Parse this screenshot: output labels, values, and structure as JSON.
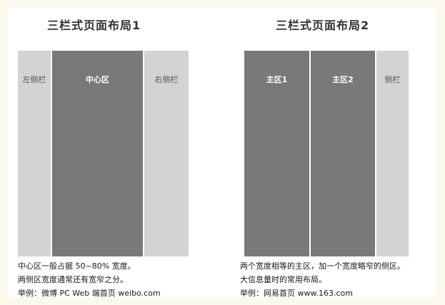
{
  "layout1": {
    "title": "三栏式页面布局1",
    "columns": {
      "left": "左侧栏",
      "center": "中心区",
      "right": "右侧栏"
    },
    "caption": [
      "中心区一般占据 50~80% 宽度。",
      "两侧区宽度通常还有宽窄之分。",
      "举例：微博 PC Web 端首页 weibo.com"
    ]
  },
  "layout2": {
    "title": "三栏式页面布局2",
    "columns": {
      "main1": "主区1",
      "main2": "主区2",
      "side": "侧栏"
    },
    "caption": [
      "两个宽度相等的主区，加一个宽度略窄的侧区。",
      "大信息量时的常用布局。",
      "举例：网易首页 www.163.com"
    ]
  },
  "colors": {
    "light_column": "#d3d3d3",
    "dark_column": "#797979",
    "background": "#fbf8ee"
  }
}
